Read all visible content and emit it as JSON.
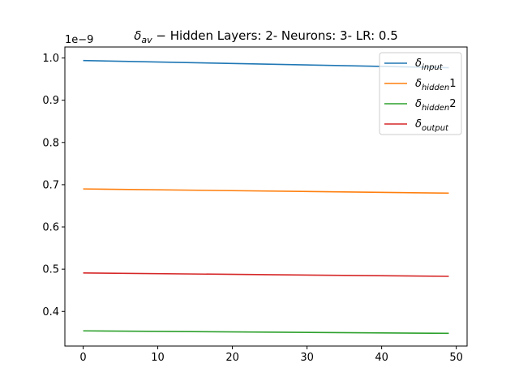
{
  "chart_data": {
    "type": "line",
    "title": {
      "symbol": "δ",
      "subscript": "av",
      "rest": " − Hidden Layers: 2- Neurons: 3- LR: 0.5"
    },
    "xlabel": "",
    "ylabel": "",
    "y_offset_label": "1e−9",
    "xlim": [
      -2.45,
      51.45
    ],
    "ylim": [
      0.318,
      1.026
    ],
    "x_ticks": [
      0,
      10,
      20,
      30,
      40,
      50
    ],
    "x_tick_labels": [
      "0",
      "10",
      "20",
      "30",
      "40",
      "50"
    ],
    "y_ticks": [
      0.4,
      0.5,
      0.6,
      0.7,
      0.8,
      0.9,
      1.0
    ],
    "y_tick_labels": [
      "0.4",
      "0.5",
      "0.6",
      "0.7",
      "0.8",
      "0.9",
      "1.0"
    ],
    "grid": false,
    "legend_position": "top-right",
    "series": [
      {
        "name": "δinput",
        "symbol": "δ",
        "subscript": "input",
        "suffix": "",
        "color": "#1f77b4",
        "x": [
          0,
          49
        ],
        "values": [
          0.994,
          0.977
        ]
      },
      {
        "name": "δhidden1",
        "symbol": "δ",
        "subscript": "hidden",
        "suffix": "1",
        "color": "#ff7f0e",
        "x": [
          0,
          49
        ],
        "values": [
          0.69,
          0.68
        ]
      },
      {
        "name": "δhidden2",
        "symbol": "δ",
        "subscript": "hidden",
        "suffix": "2",
        "color": "#2ca02c",
        "x": [
          0,
          49
        ],
        "values": [
          0.354,
          0.348
        ]
      },
      {
        "name": "δoutput",
        "symbol": "δ",
        "subscript": "output",
        "suffix": "",
        "color": "#d62728",
        "x": [
          0,
          49
        ],
        "values": [
          0.491,
          0.483
        ]
      }
    ]
  }
}
